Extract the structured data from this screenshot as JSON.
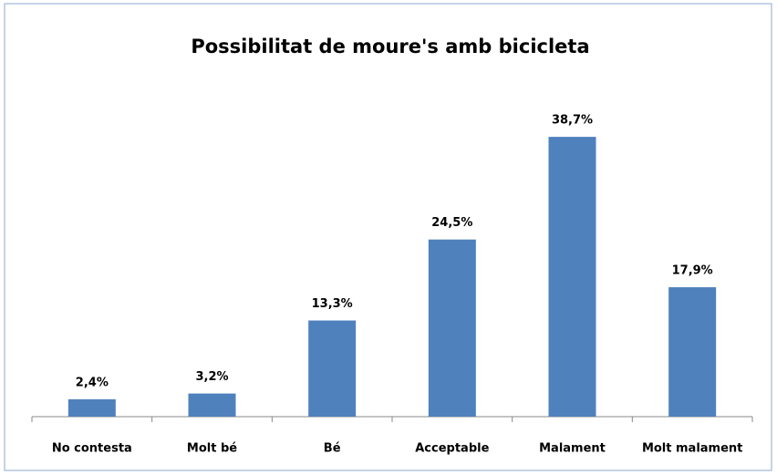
{
  "chart_data": {
    "type": "bar",
    "title": "Possibilitat de moure's amb bicicleta",
    "categories": [
      "No contesta",
      "Molt bé",
      "Bé",
      "Acceptable",
      "Malament",
      "Molt malament"
    ],
    "values": [
      2.4,
      3.2,
      13.3,
      24.5,
      38.7,
      17.9
    ],
    "value_labels": [
      "2,4%",
      "3,2%",
      "13,3%",
      "24,5%",
      "38,7%",
      "17,9%"
    ],
    "color": "#4f81bd"
  }
}
